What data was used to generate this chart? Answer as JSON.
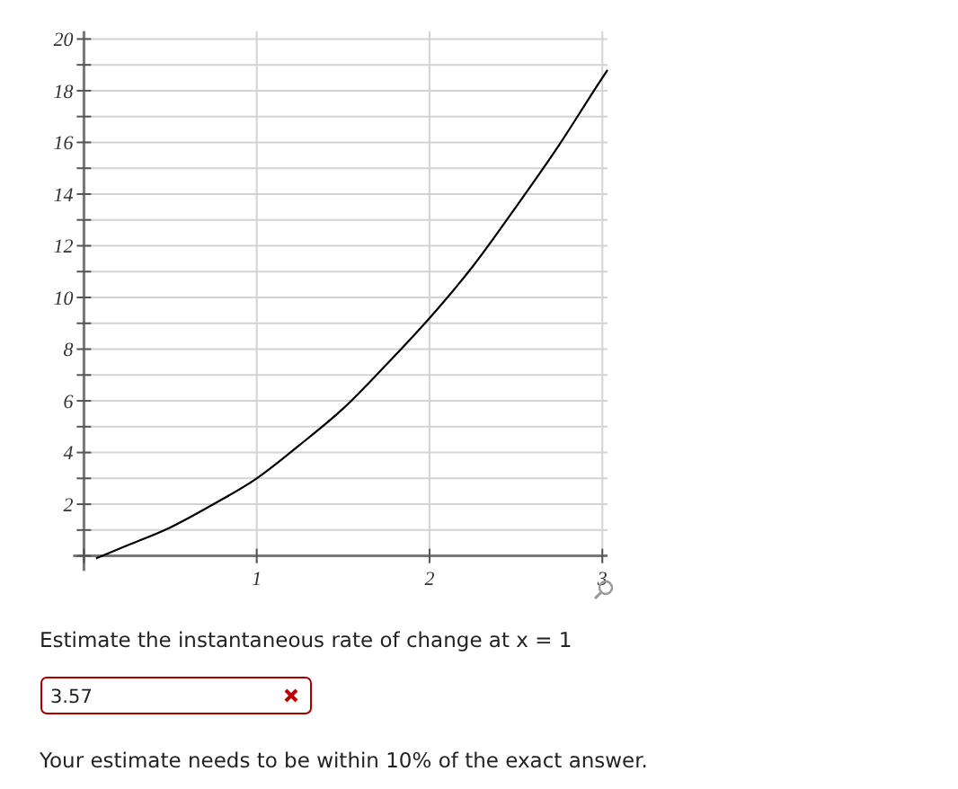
{
  "chart_data": {
    "type": "line",
    "x": [
      0.07,
      0.25,
      0.5,
      0.75,
      1,
      1.25,
      1.5,
      1.75,
      2,
      2.25,
      2.5,
      2.75,
      3,
      3.03
    ],
    "series": [
      {
        "color": "#000000",
        "values": [
          -0.1,
          0.4,
          1.1,
          2.0,
          3.0,
          4.3,
          5.7,
          7.4,
          9.2,
          11.2,
          13.5,
          15.9,
          18.5,
          18.8
        ]
      }
    ],
    "xlim": [
      0,
      3.03
    ],
    "ylim": [
      -0.3,
      20.3
    ],
    "xticks": [
      {
        "value": 0,
        "label": null
      },
      1,
      2,
      3
    ],
    "yticks": [
      {
        "value": 0,
        "label": null
      },
      {
        "value": 1,
        "label": null
      },
      2,
      {
        "value": 3,
        "label": null
      },
      4,
      {
        "value": 5,
        "label": null
      },
      6,
      {
        "value": 7,
        "label": null
      },
      8,
      {
        "value": 9,
        "label": null
      },
      10,
      {
        "value": 11,
        "label": null
      },
      12,
      {
        "value": 13,
        "label": null
      },
      14,
      {
        "value": 15,
        "label": null
      },
      16,
      {
        "value": 17,
        "label": null
      },
      18,
      {
        "value": 19,
        "label": null
      },
      20
    ],
    "grid": true,
    "marker": "none",
    "line_style": "solid",
    "annotations": [
      "Estimate the instantaneous rate of change at x = 1",
      "3.57",
      "Your estimate needs to be within 10% of the exact answer."
    ]
  }
}
